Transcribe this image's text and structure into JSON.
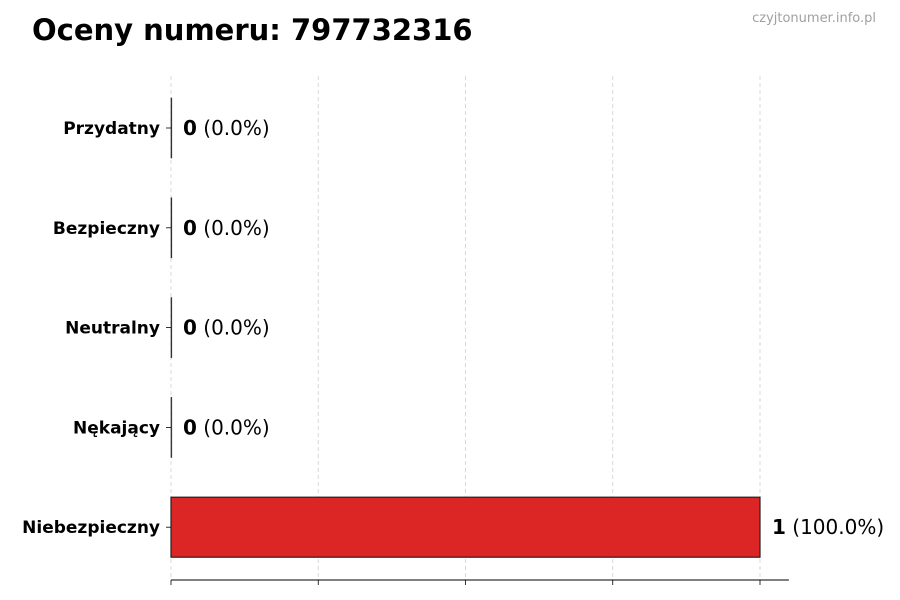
{
  "watermark": "czyjtonumer.info.pl",
  "chart_data": {
    "type": "bar",
    "orientation": "horizontal",
    "title": "Oceny numeru: 797732316",
    "categories": [
      "Przydatny",
      "Bezpieczny",
      "Neutralny",
      "Nękający",
      "Niebezpieczny"
    ],
    "values": [
      0,
      0,
      0,
      0,
      1
    ],
    "percent_labels": [
      "(0.0%)",
      "(0.0%)",
      "(0.0%)",
      "(0.0%)",
      "(100.0%)"
    ],
    "colors": [
      "#2ca02c",
      "#1f77b4",
      "#7f7f7f",
      "#ff7f0e",
      "#dc2626"
    ],
    "xlim": [
      0,
      1.1
    ],
    "xticks": [
      0,
      0.25,
      0.5,
      0.75,
      1
    ],
    "xtick_labels_shown": false,
    "grid": "x-dashed",
    "legend": "none"
  }
}
